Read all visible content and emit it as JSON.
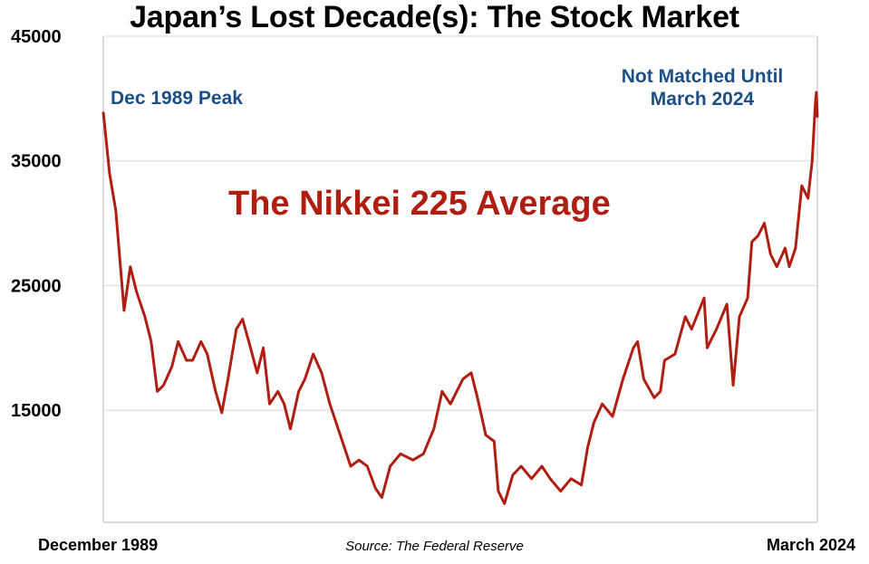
{
  "title": "Japan’s Lost Decade(s): The Stock Market",
  "source": "Source: The Federal Reserve",
  "annotations": {
    "peak": "Dec 1989 Peak",
    "recent_line1": "Not Matched Until",
    "recent_line2": "March 2024"
  },
  "colors": {
    "line": "#b01e12",
    "annotation": "#1d4f86",
    "grid": "#d9d9d9"
  },
  "chart_data": {
    "type": "line",
    "title": "Japan’s Lost Decade(s): The Stock Market",
    "series_label": "The Nikkei 225 Average",
    "x_start_label": "December 1989",
    "x_end_label": "March 2024",
    "ylim": [
      6000,
      45000
    ],
    "yticks": [
      15000,
      25000,
      35000,
      45000
    ],
    "grid": true,
    "series": [
      {
        "name": "The Nikkei 225 Average",
        "points": [
          [
            "1989.9",
            38900
          ],
          [
            "1990.2",
            34000
          ],
          [
            "1990.5",
            31000
          ],
          [
            "1990.7",
            27000
          ],
          [
            "1990.9",
            23000
          ],
          [
            "1991.2",
            26500
          ],
          [
            "1991.5",
            24500
          ],
          [
            "1991.9",
            22500
          ],
          [
            "1992.2",
            20500
          ],
          [
            "1992.5",
            16500
          ],
          [
            "1992.8",
            17000
          ],
          [
            "1993.2",
            18500
          ],
          [
            "1993.5",
            20500
          ],
          [
            "1993.9",
            19000
          ],
          [
            "1994.2",
            19000
          ],
          [
            "1994.6",
            20500
          ],
          [
            "1994.9",
            19500
          ],
          [
            "1995.3",
            16500
          ],
          [
            "1995.6",
            14800
          ],
          [
            "1995.9",
            17500
          ],
          [
            "1996.3",
            21500
          ],
          [
            "1996.6",
            22300
          ],
          [
            "1996.9",
            20500
          ],
          [
            "1997.3",
            18000
          ],
          [
            "1997.6",
            20000
          ],
          [
            "1997.9",
            15500
          ],
          [
            "1998.3",
            16500
          ],
          [
            "1998.6",
            15500
          ],
          [
            "1998.9",
            13500
          ],
          [
            "1999.3",
            16500
          ],
          [
            "1999.6",
            17500
          ],
          [
            "2000.0",
            19500
          ],
          [
            "2000.4",
            18000
          ],
          [
            "2000.8",
            15500
          ],
          [
            "2001.3",
            13000
          ],
          [
            "2001.8",
            10500
          ],
          [
            "2002.2",
            11000
          ],
          [
            "2002.6",
            10500
          ],
          [
            "2003.0",
            8700
          ],
          [
            "2003.3",
            8000
          ],
          [
            "2003.7",
            10500
          ],
          [
            "2004.2",
            11500
          ],
          [
            "2004.8",
            11000
          ],
          [
            "2005.3",
            11500
          ],
          [
            "2005.8",
            13500
          ],
          [
            "2006.2",
            16500
          ],
          [
            "2006.6",
            15500
          ],
          [
            "2007.2",
            17500
          ],
          [
            "2007.6",
            18000
          ],
          [
            "2007.9",
            16000
          ],
          [
            "2008.3",
            13000
          ],
          [
            "2008.7",
            12500
          ],
          [
            "2008.9",
            8500
          ],
          [
            "2009.2",
            7500
          ],
          [
            "2009.6",
            9800
          ],
          [
            "2010.0",
            10500
          ],
          [
            "2010.5",
            9500
          ],
          [
            "2011.0",
            10500
          ],
          [
            "2011.4",
            9500
          ],
          [
            "2011.9",
            8500
          ],
          [
            "2012.4",
            9500
          ],
          [
            "2012.9",
            9000
          ],
          [
            "2013.2",
            12000
          ],
          [
            "2013.5",
            14000
          ],
          [
            "2013.9",
            15500
          ],
          [
            "2014.4",
            14500
          ],
          [
            "2014.9",
            17500
          ],
          [
            "2015.4",
            20000
          ],
          [
            "2015.6",
            20500
          ],
          [
            "2015.9",
            17500
          ],
          [
            "2016.4",
            16000
          ],
          [
            "2016.7",
            16500
          ],
          [
            "2016.9",
            19000
          ],
          [
            "2017.4",
            19500
          ],
          [
            "2017.9",
            22500
          ],
          [
            "2018.2",
            21500
          ],
          [
            "2018.8",
            24000
          ],
          [
            "2018.95",
            20000
          ],
          [
            "2019.4",
            21500
          ],
          [
            "2019.9",
            23500
          ],
          [
            "2020.2",
            17000
          ],
          [
            "2020.5",
            22500
          ],
          [
            "2020.9",
            24000
          ],
          [
            "2021.1",
            28500
          ],
          [
            "2021.4",
            29000
          ],
          [
            "2021.7",
            30000
          ],
          [
            "2022.0",
            27500
          ],
          [
            "2022.3",
            26500
          ],
          [
            "2022.7",
            28000
          ],
          [
            "2022.9",
            26500
          ],
          [
            "2023.2",
            28000
          ],
          [
            "2023.5",
            33000
          ],
          [
            "2023.8",
            32000
          ],
          [
            "2024.0",
            35000
          ],
          [
            "2024.15",
            39500
          ],
          [
            "2024.2",
            40500
          ],
          [
            "2024.25",
            38500
          ]
        ]
      }
    ]
  }
}
